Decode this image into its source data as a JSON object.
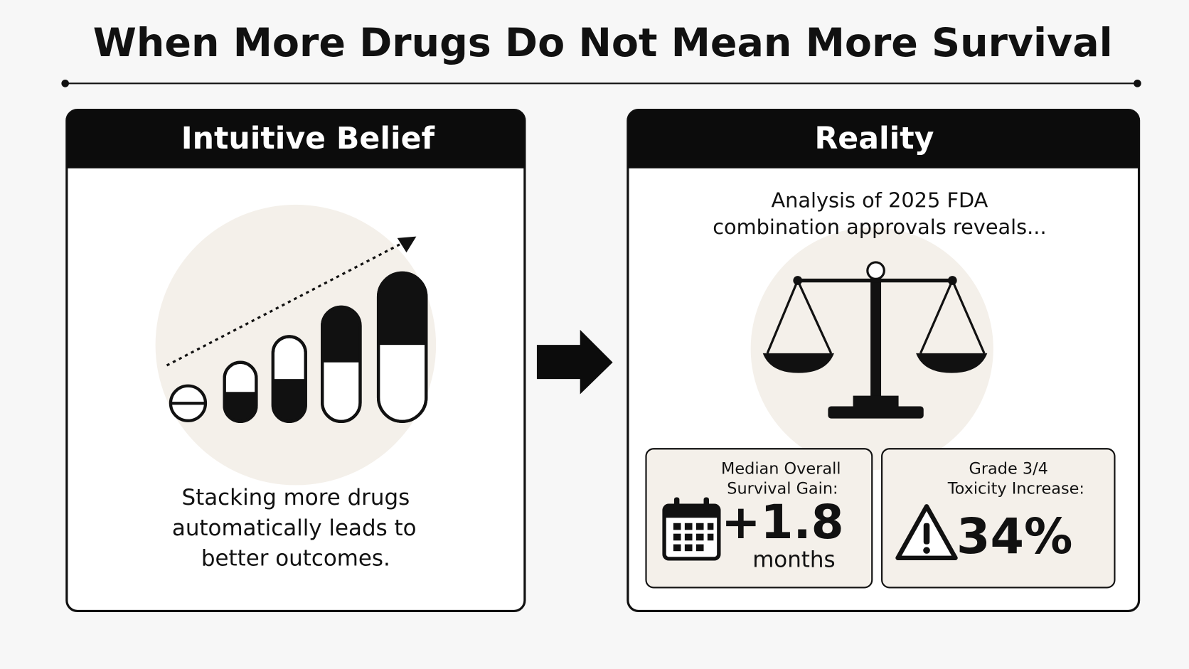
{
  "title": "When More Drugs Do Not Mean More Survival",
  "left_panel": {
    "header": "Intuitive Belief",
    "body": [
      "Stacking more drugs",
      "automatically leads to",
      "better outcomes."
    ]
  },
  "right_panel": {
    "header": "Reality",
    "intro": [
      "Analysis of 2025 FDA",
      "combination approvals reveals..."
    ],
    "stats": [
      {
        "label": [
          "Median Overall",
          "Survival Gain:"
        ],
        "value": "+1.8",
        "unit": "months"
      },
      {
        "label": [
          "Grade 3/4",
          "Toxicity Increase:"
        ],
        "value": "34%"
      }
    ]
  }
}
